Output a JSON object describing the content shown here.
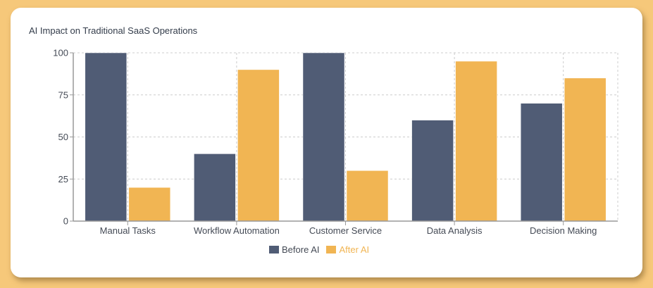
{
  "title": "AI Impact on Traditional SaaS Operations",
  "colors": {
    "before": "#505c75",
    "after": "#f1b553",
    "background": "#f6c87a",
    "card": "#ffffff",
    "grid": "#cccccc",
    "axis": "#999999",
    "text": "#444a55"
  },
  "legend": {
    "items": [
      {
        "label": "Before AI",
        "color": "#505c75"
      },
      {
        "label": "After AI",
        "color": "#f1b553"
      }
    ]
  },
  "chart_data": {
    "type": "bar",
    "title": "AI Impact on Traditional SaaS Operations",
    "xlabel": "",
    "ylabel": "",
    "categories": [
      "Manual Tasks",
      "Workflow Automation",
      "Customer Service",
      "Data Analysis",
      "Decision Making"
    ],
    "series": [
      {
        "name": "Before AI",
        "values": [
          100,
          40,
          100,
          60,
          70
        ],
        "color": "#505c75"
      },
      {
        "name": "After AI",
        "values": [
          20,
          90,
          30,
          95,
          85
        ],
        "color": "#f1b553"
      }
    ],
    "ylim": [
      0,
      100
    ],
    "yticks": [
      0,
      25,
      50,
      75,
      100
    ],
    "grid": true,
    "grid_style": "dashed",
    "legend_position": "bottom"
  }
}
